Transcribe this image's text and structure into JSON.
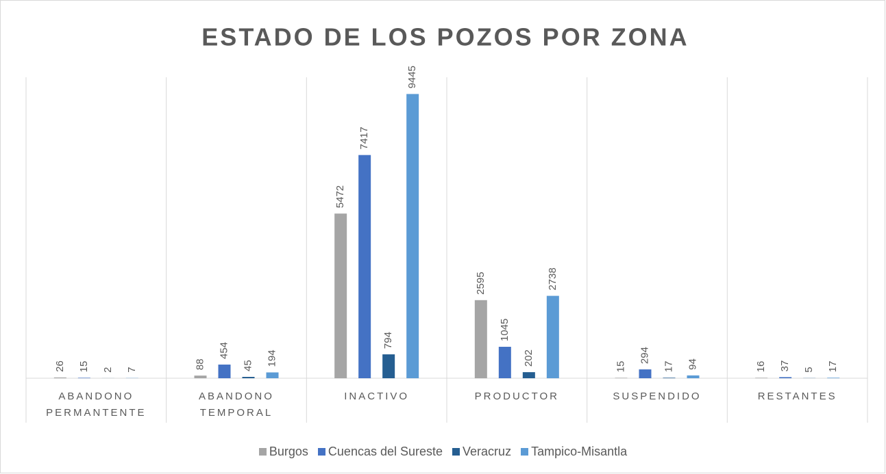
{
  "chart_data": {
    "type": "bar",
    "title": "ESTADO DE LOS POZOS POR ZONA",
    "categories": [
      "ABANDONO PERMANTENTE",
      "ABANDONO TEMPORAL",
      "INACTIVO",
      "PRODUCTOR",
      "SUSPENDIDO",
      "RESTANTES"
    ],
    "series": [
      {
        "name": "Burgos",
        "color": "#a5a5a5",
        "values": [
          26,
          88,
          5472,
          2595,
          15,
          16
        ]
      },
      {
        "name": "Cuencas del Sureste",
        "color": "#4472c4",
        "values": [
          15,
          454,
          7417,
          1045,
          294,
          37
        ]
      },
      {
        "name": "Veracruz",
        "color": "#255e91",
        "values": [
          2,
          45,
          794,
          202,
          17,
          5
        ]
      },
      {
        "name": "Tampico-Misantla",
        "color": "#5b9bd5",
        "values": [
          7,
          194,
          9445,
          2738,
          94,
          17
        ]
      }
    ],
    "ylim": [
      0,
      10000
    ],
    "legend": "bottom"
  }
}
